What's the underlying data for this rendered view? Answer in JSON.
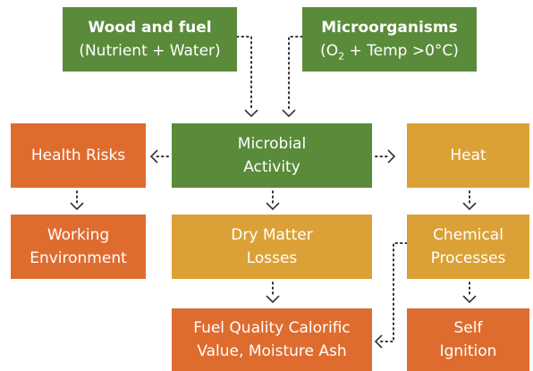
{
  "nodes": [
    {
      "lines": [
        "Wood and fuel",
        "(Nutrient + Water)"
      ]
    },
    {
      "lines": [
        "Microorganisms"
      ],
      "formula": {
        "before": "(O",
        "sub": "2",
        "after": " + Temp >0°C)"
      }
    },
    {
      "lines": [
        "Health Risks"
      ]
    },
    {
      "lines": [
        "Microbial",
        "Activity"
      ]
    },
    {
      "lines": [
        "Heat"
      ]
    },
    {
      "lines": [
        "Working",
        "Environment"
      ]
    },
    {
      "lines": [
        "Dry Matter",
        "Losses"
      ]
    },
    {
      "lines": [
        "Chemical",
        "Processes"
      ]
    },
    {
      "lines": [
        "Fuel Quality Calorific",
        "Value, Moisture Ash"
      ]
    },
    {
      "lines": [
        "Self",
        "Ignition"
      ]
    }
  ]
}
